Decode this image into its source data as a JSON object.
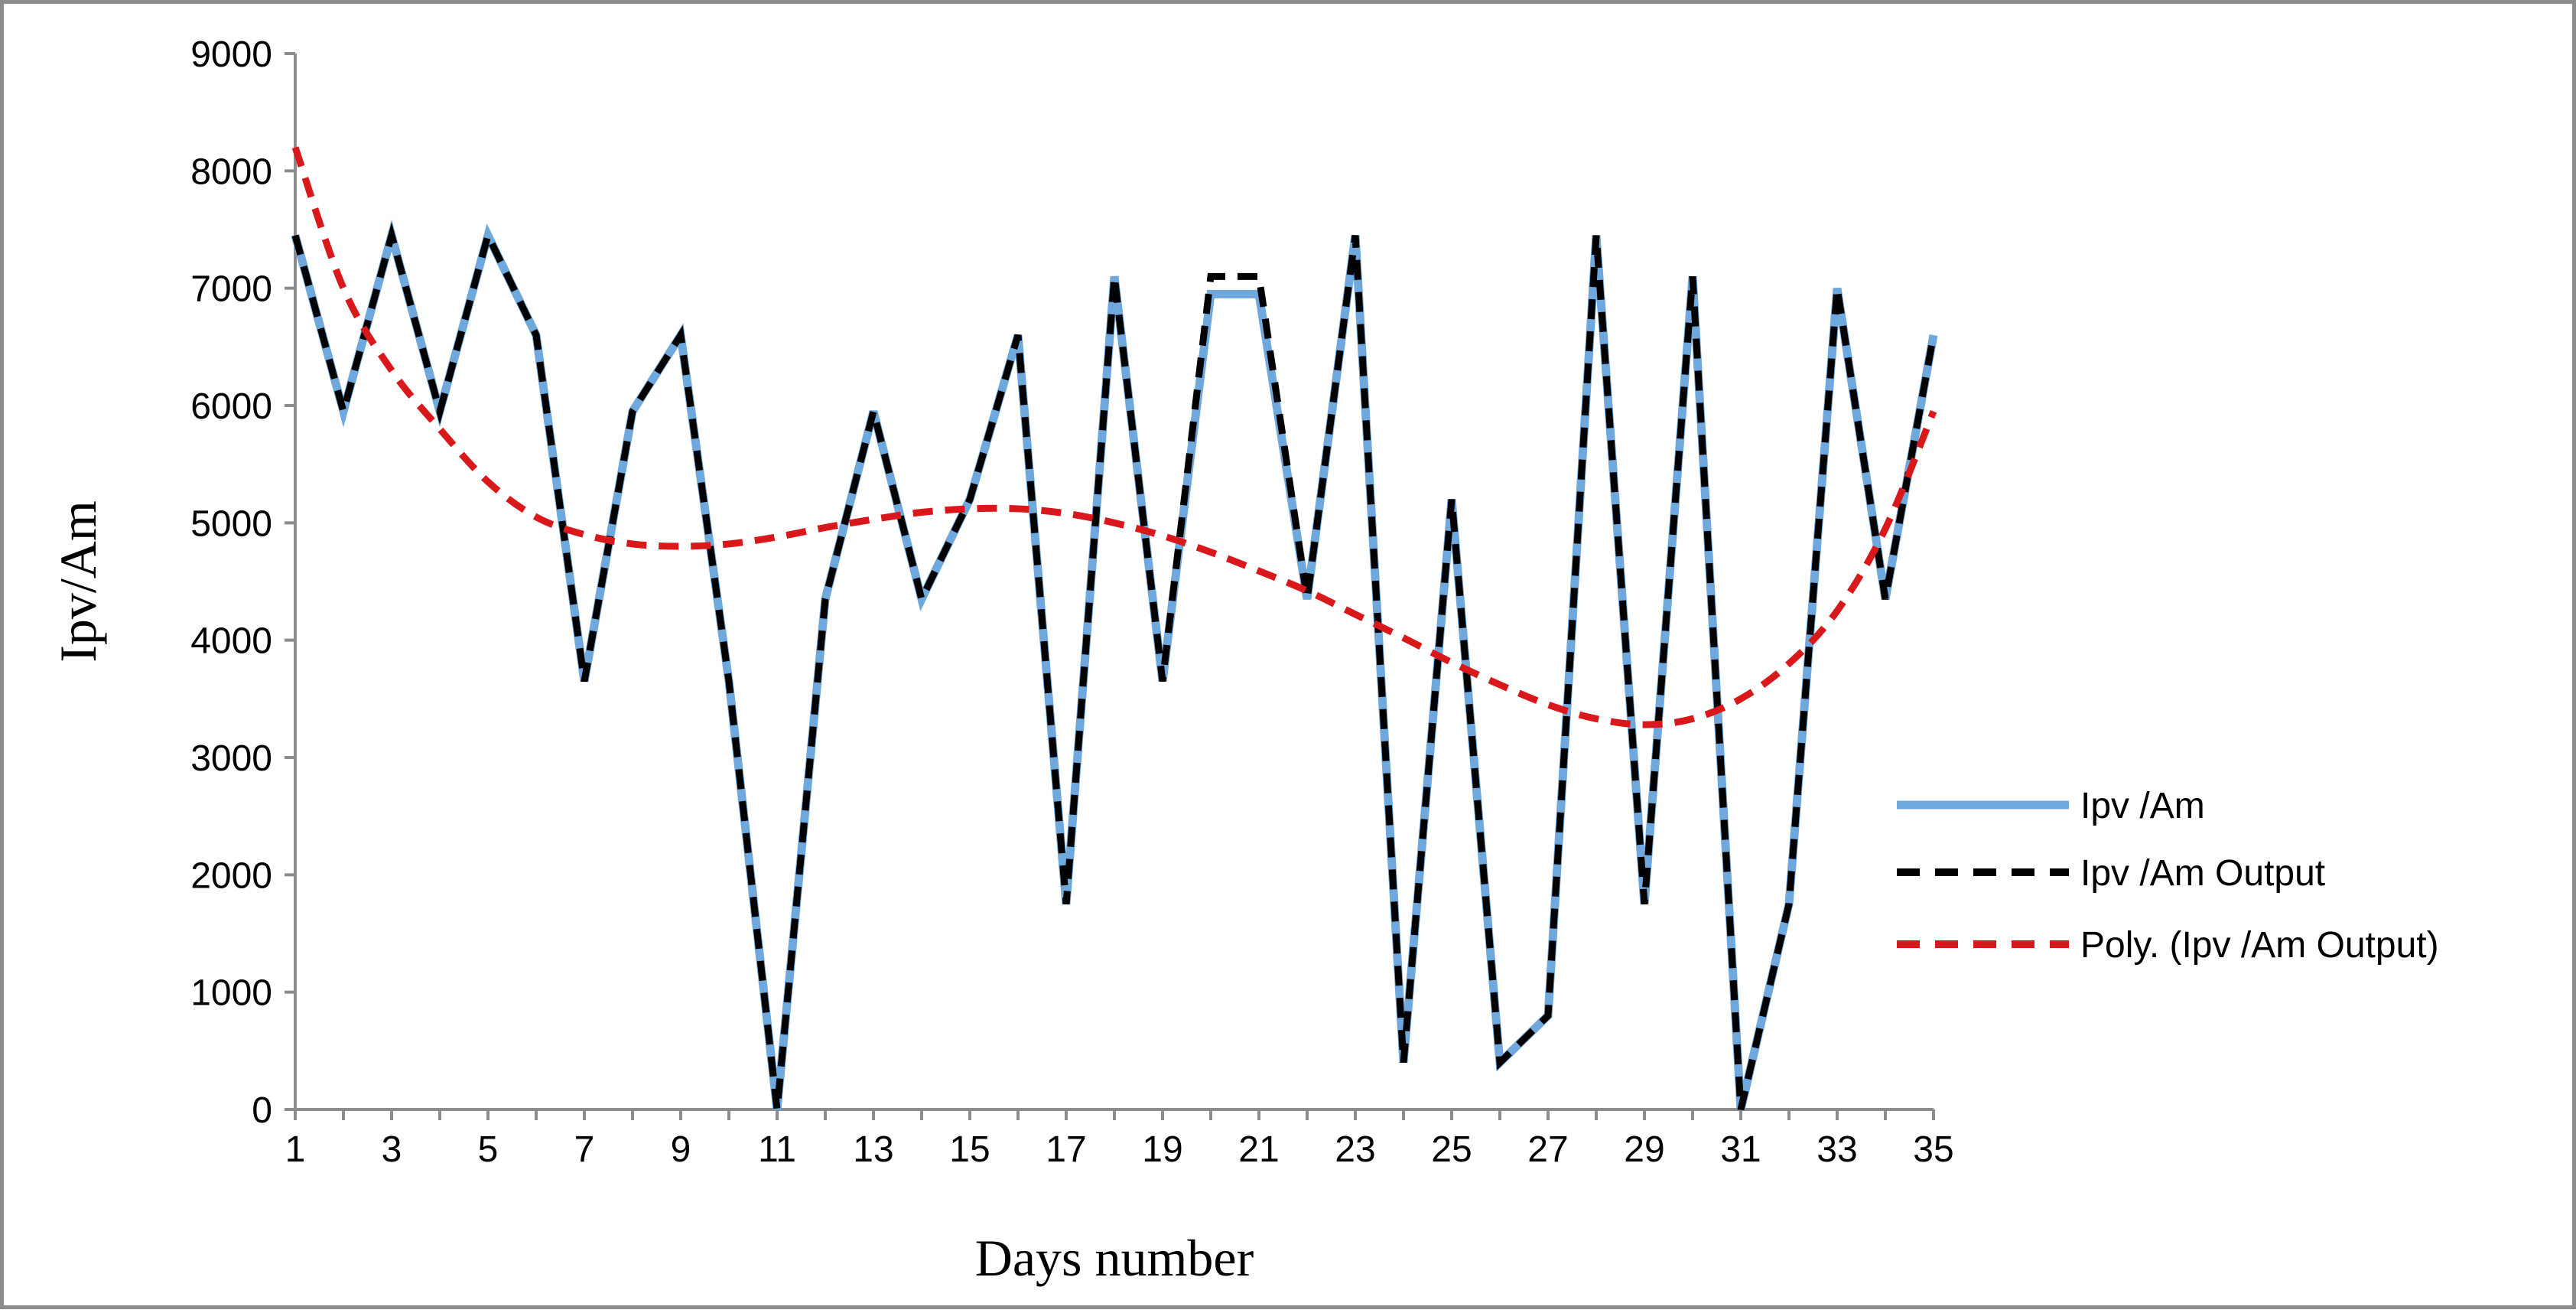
{
  "chart_data": {
    "type": "line",
    "title": "",
    "xlabel": "Days number",
    "ylabel": "Ipv/Am",
    "x": [
      1,
      2,
      3,
      4,
      5,
      6,
      7,
      8,
      9,
      10,
      11,
      12,
      13,
      14,
      15,
      16,
      17,
      18,
      19,
      20,
      21,
      22,
      23,
      24,
      25,
      26,
      27,
      28,
      29,
      30,
      31,
      32,
      33,
      34,
      35
    ],
    "xlim": [
      1,
      35
    ],
    "ylim": [
      0,
      9000
    ],
    "x_ticks": [
      "1",
      "3",
      "5",
      "7",
      "9",
      "11",
      "13",
      "15",
      "17",
      "19",
      "21",
      "23",
      "25",
      "27",
      "29",
      "31",
      "33",
      "35"
    ],
    "y_ticks": [
      "0",
      "1000",
      "2000",
      "3000",
      "4000",
      "5000",
      "6000",
      "7000",
      "8000",
      "9000"
    ],
    "grid": false,
    "legend_position": "right",
    "series": [
      {
        "name": "Ipv /Am",
        "color": "#6fa8dc",
        "style": "solid",
        "values": [
          7450,
          5950,
          7450,
          5950,
          7450,
          6600,
          3650,
          5950,
          6600,
          3650,
          0,
          4350,
          5950,
          4350,
          5200,
          6600,
          1750,
          7100,
          3650,
          6950,
          6950,
          4350,
          7450,
          400,
          5200,
          400,
          800,
          7450,
          1750,
          7100,
          0,
          1750,
          7000,
          4350,
          6600
        ]
      },
      {
        "name": "Ipv /Am Output",
        "color": "#000000",
        "style": "dashed",
        "values": [
          7450,
          5950,
          7450,
          5950,
          7450,
          6600,
          3650,
          5950,
          6600,
          3650,
          0,
          4350,
          5950,
          4350,
          5200,
          6600,
          1750,
          7100,
          3650,
          7100,
          7100,
          4350,
          7450,
          400,
          5200,
          400,
          800,
          7450,
          1750,
          7100,
          0,
          1750,
          7000,
          4350,
          6600
        ]
      },
      {
        "name": "Poly. (Ipv /Am Output)",
        "color": "#d9181c",
        "style": "dashed",
        "trend": "polynomial",
        "values": [
          8200,
          7000,
          6300,
          5800,
          5350,
          5050,
          4900,
          4820,
          4800,
          4820,
          4880,
          4960,
          5030,
          5090,
          5120,
          5120,
          5080,
          5000,
          4890,
          4750,
          4590,
          4420,
          4220,
          4020,
          3810,
          3620,
          3450,
          3330,
          3280,
          3330,
          3500,
          3800,
          4250,
          4950,
          5950
        ]
      }
    ]
  }
}
